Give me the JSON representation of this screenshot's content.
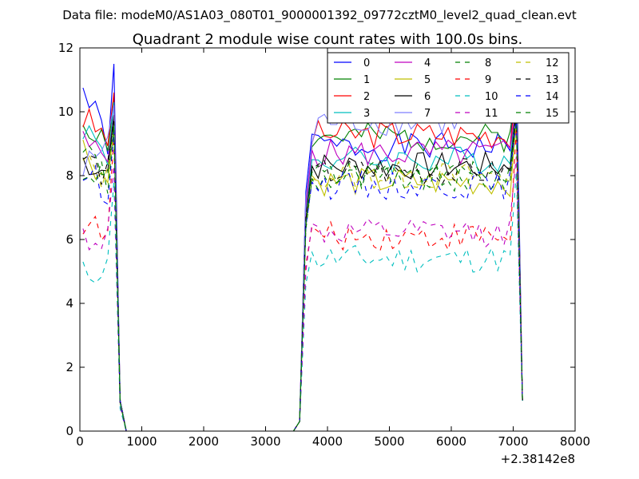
{
  "suptitle": "Data file: modeM0/AS1A03_080T01_9000001392_09772cztM0_level2_quad_clean.evt",
  "chart_data": {
    "type": "line",
    "title": "Quadrant 2 module wise count rates with 100.0s bins.",
    "xlabel": "",
    "ylabel": "",
    "xlim": [
      0,
      8000
    ],
    "ylim": [
      0,
      12
    ],
    "x_ticks": [
      "0",
      "1000",
      "2000",
      "3000",
      "4000",
      "5000",
      "6000",
      "7000",
      "8000"
    ],
    "y_ticks": [
      "0",
      "2",
      "4",
      "6",
      "8",
      "10",
      "12"
    ],
    "x_offset_label": "+2.38142e8",
    "grid": false,
    "legend": {
      "placement": "top-right",
      "columns": 4
    },
    "x": [
      50,
      150,
      250,
      350,
      450,
      550,
      650,
      750,
      850,
      950,
      1050,
      1150,
      1250,
      1350,
      1450,
      1550,
      1650,
      1750,
      1850,
      1950,
      2050,
      2150,
      2250,
      2350,
      2450,
      2550,
      2650,
      2750,
      2850,
      2950,
      3050,
      3150,
      3250,
      3350,
      3450,
      3550,
      3650,
      3750,
      3850,
      3950,
      4050,
      4150,
      4250,
      4350,
      4450,
      4550,
      4650,
      4750,
      4850,
      4950,
      5050,
      5150,
      5250,
      5350,
      5450,
      5550,
      5650,
      5750,
      5850,
      5950,
      6050,
      6150,
      6250,
      6350,
      6450,
      6550,
      6650,
      6750,
      6850,
      6950,
      7050,
      7150
    ],
    "series": [
      {
        "name": "0",
        "color": "#0000ff",
        "dash": "solid",
        "opacity": 1,
        "level": 8.9,
        "start": 10.7,
        "peak": 11.5,
        "fall": 1.0,
        "rampA": 7.5,
        "rampB": 9.3,
        "seed": 1
      },
      {
        "name": "1",
        "color": "#008000",
        "dash": "solid",
        "opacity": 1,
        "level": 9.2,
        "start": 9.7,
        "peak": 10.4,
        "fall": 1.0,
        "rampA": 7.0,
        "rampB": 8.9,
        "seed": 2
      },
      {
        "name": "2",
        "color": "#ff0000",
        "dash": "solid",
        "opacity": 1,
        "level": 9.3,
        "start": 9.8,
        "peak": 10.6,
        "fall": 1.0,
        "rampA": 7.2,
        "rampB": 9.0,
        "seed": 3
      },
      {
        "name": "3",
        "color": "#00bfbf",
        "dash": "solid",
        "opacity": 1,
        "level": 8.5,
        "start": 9.6,
        "peak": 10.3,
        "fall": 0.9,
        "rampA": 6.8,
        "rampB": 8.5,
        "seed": 4
      },
      {
        "name": "4",
        "color": "#bf00bf",
        "dash": "solid",
        "opacity": 1,
        "level": 8.7,
        "start": 9.0,
        "peak": 9.9,
        "fall": 0.9,
        "rampA": 7.0,
        "rampB": 8.8,
        "seed": 5
      },
      {
        "name": "5",
        "color": "#bfbf00",
        "dash": "solid",
        "opacity": 1,
        "level": 7.8,
        "start": 8.9,
        "peak": 9.5,
        "fall": 0.9,
        "rampA": 6.4,
        "rampB": 7.9,
        "seed": 6
      },
      {
        "name": "6",
        "color": "#000000",
        "dash": "solid",
        "opacity": 1,
        "level": 8.3,
        "start": 8.5,
        "peak": 9.9,
        "fall": 0.9,
        "rampA": 6.6,
        "rampB": 8.3,
        "seed": 7
      },
      {
        "name": "7",
        "color": "#7f7fff",
        "dash": "solid",
        "opacity": 1,
        "level": 9.7,
        "start": 8.1,
        "peak": 10.2,
        "fall": 1.0,
        "rampA": 7.3,
        "rampB": 9.0,
        "seed": 8
      },
      {
        "name": "8",
        "color": "#008000",
        "dash": "dashed",
        "opacity": 1,
        "level": 7.9,
        "start": 9.0,
        "peak": 9.6,
        "fall": 0.9,
        "rampA": 6.3,
        "rampB": 7.9,
        "seed": 9
      },
      {
        "name": "9",
        "color": "#ff0000",
        "dash": "dashed",
        "opacity": 1,
        "level": 6.1,
        "start": 6.6,
        "peak": 9.2,
        "fall": 0.8,
        "rampA": 5.2,
        "rampB": 6.4,
        "seed": 10
      },
      {
        "name": "10",
        "color": "#00bfbf",
        "dash": "dashed",
        "opacity": 1,
        "level": 5.4,
        "start": 4.9,
        "peak": 7.8,
        "fall": 0.7,
        "rampA": 4.6,
        "rampB": 5.6,
        "seed": 11
      },
      {
        "name": "11",
        "color": "#bf00bf",
        "dash": "dashed",
        "opacity": 1,
        "level": 6.2,
        "start": 6.1,
        "peak": 8.3,
        "fall": 0.8,
        "rampA": 5.0,
        "rampB": 6.5,
        "seed": 12
      },
      {
        "name": "12",
        "color": "#bfbf00",
        "dash": "dashed",
        "opacity": 1,
        "level": 8.0,
        "start": 8.4,
        "peak": 9.2,
        "fall": 0.9,
        "rampA": 6.6,
        "rampB": 8.0,
        "seed": 13
      },
      {
        "name": "13",
        "color": "#000000",
        "dash": "dashed",
        "opacity": 1,
        "level": 8.1,
        "start": 8.6,
        "peak": 9.7,
        "fall": 0.9,
        "rampA": 6.7,
        "rampB": 8.2,
        "seed": 14
      },
      {
        "name": "14",
        "color": "#0000ff",
        "dash": "dashed",
        "opacity": 1,
        "level": 7.7,
        "start": 8.1,
        "peak": 9.4,
        "fall": 0.9,
        "rampA": 6.4,
        "rampB": 7.8,
        "seed": 15
      },
      {
        "name": "15",
        "color": "#008000",
        "dash": "dashed",
        "opacity": 1,
        "level": 8.0,
        "start": 8.3,
        "peak": 9.6,
        "fall": 0.9,
        "rampA": 6.5,
        "rampB": 8.1,
        "seed": 16
      }
    ]
  }
}
